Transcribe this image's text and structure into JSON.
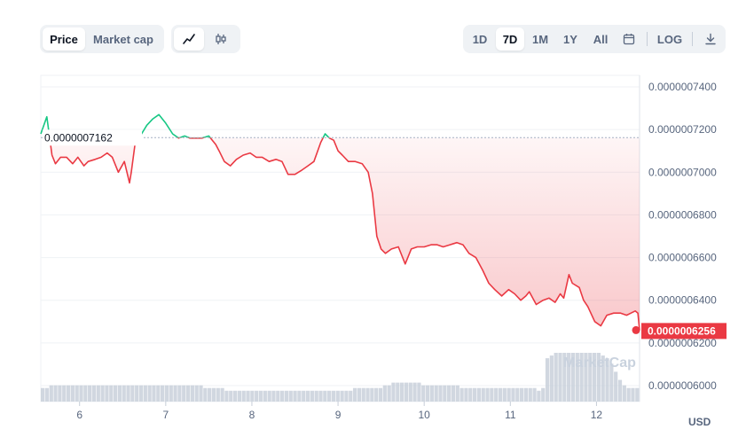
{
  "toolbar": {
    "metric_tabs": [
      {
        "label": "Price",
        "active": true
      },
      {
        "label": "Market cap",
        "active": false
      }
    ],
    "chart_style": [
      {
        "icon": "line-chart-icon",
        "active": true
      },
      {
        "icon": "candlestick-icon",
        "active": false
      }
    ],
    "ranges": [
      {
        "label": "1D",
        "active": false
      },
      {
        "label": "7D",
        "active": true
      },
      {
        "label": "1M",
        "active": false
      },
      {
        "label": "1Y",
        "active": false
      },
      {
        "label": "All",
        "active": false
      }
    ],
    "calendar_icon": "calendar-icon",
    "log_label": "LOG",
    "download_icon": "download-icon"
  },
  "colors": {
    "up": "#16c784",
    "down": "#ea3943",
    "grid": "#eff2f5",
    "volume": "#c2c9d6"
  },
  "currency_label": "USD",
  "watermark": "MarketCap",
  "chart_data": {
    "type": "line",
    "x_tick_labels": [
      "6",
      "7",
      "8",
      "9",
      "10",
      "11",
      "12"
    ],
    "x_range": [
      5.55,
      12.5
    ],
    "y_tick_labels": [
      "0.0000007400",
      "0.0000007200",
      "0.0000007000",
      "0.0000006800",
      "0.0000006600",
      "0.0000006400",
      "0.0000006200",
      "0.0000006000"
    ],
    "ylim": [
      5.95e-07,
      7.4e-07
    ],
    "grid": true,
    "reference_price": 7.162e-07,
    "reference_label": "0.0000007162",
    "current_price": 6.256e-07,
    "current_label": "0.0000006256",
    "series": [
      {
        "x": [
          5.55,
          5.62,
          5.68,
          5.72,
          5.78,
          5.85,
          5.92,
          5.98,
          6.05,
          6.1,
          6.18,
          6.25,
          6.32,
          6.38,
          6.45,
          6.52,
          6.58,
          6.6,
          6.65,
          6.72,
          6.78,
          6.85,
          6.92,
          7.0,
          7.08,
          7.15,
          7.22,
          7.28,
          7.35,
          7.42,
          7.5,
          7.58,
          7.62,
          7.68,
          7.75,
          7.82,
          7.9,
          7.98,
          8.05,
          8.12,
          8.2,
          8.28,
          8.35,
          8.42,
          8.5,
          8.58,
          8.65,
          8.72,
          8.8,
          8.85,
          8.9,
          8.95,
          9.0,
          9.05,
          9.12,
          9.2,
          9.28,
          9.35,
          9.4,
          9.45,
          9.5,
          9.55,
          9.62,
          9.7,
          9.78,
          9.85,
          9.92,
          10.0,
          10.08,
          10.15,
          10.22,
          10.3,
          10.38,
          10.45,
          10.52,
          10.6,
          10.68,
          10.75,
          10.82,
          10.9,
          10.98,
          11.05,
          11.12,
          11.18,
          11.22,
          11.3,
          11.38,
          11.45,
          11.52,
          11.58,
          11.62,
          11.68,
          11.72,
          11.8,
          11.85,
          11.9,
          11.98,
          12.05,
          12.12,
          12.2,
          12.28,
          12.35,
          12.4,
          12.45,
          12.48,
          12.5
        ],
        "y": [
          7.18e-07,
          7.26e-07,
          7.08e-07,
          7.04e-07,
          7.07e-07,
          7.07e-07,
          7.04e-07,
          7.07e-07,
          7.03e-07,
          7.05e-07,
          7.06e-07,
          7.07e-07,
          7.09e-07,
          7.07e-07,
          7e-07,
          7.05e-07,
          6.95e-07,
          7e-07,
          7.15e-07,
          7.18e-07,
          7.22e-07,
          7.25e-07,
          7.27e-07,
          7.23e-07,
          7.18e-07,
          7.16e-07,
          7.17e-07,
          7.16e-07,
          7.16e-07,
          7.16e-07,
          7.17e-07,
          7.13e-07,
          7.1e-07,
          7.05e-07,
          7.03e-07,
          7.06e-07,
          7.08e-07,
          7.09e-07,
          7.07e-07,
          7.07e-07,
          7.05e-07,
          7.06e-07,
          7.05e-07,
          6.99e-07,
          6.99e-07,
          7.01e-07,
          7.03e-07,
          7.05e-07,
          7.14e-07,
          7.18e-07,
          7.16e-07,
          7.15e-07,
          7.1e-07,
          7.08e-07,
          7.05e-07,
          7.05e-07,
          7.04e-07,
          7e-07,
          6.9e-07,
          6.7e-07,
          6.64e-07,
          6.62e-07,
          6.64e-07,
          6.65e-07,
          6.57e-07,
          6.64e-07,
          6.65e-07,
          6.65e-07,
          6.66e-07,
          6.66e-07,
          6.65e-07,
          6.66e-07,
          6.67e-07,
          6.66e-07,
          6.62e-07,
          6.6e-07,
          6.54e-07,
          6.48e-07,
          6.45e-07,
          6.42e-07,
          6.45e-07,
          6.43e-07,
          6.4e-07,
          6.42e-07,
          6.44e-07,
          6.38e-07,
          6.4e-07,
          6.41e-07,
          6.39e-07,
          6.43e-07,
          6.41e-07,
          6.52e-07,
          6.48e-07,
          6.46e-07,
          6.4e-07,
          6.37e-07,
          6.3e-07,
          6.28e-07,
          6.33e-07,
          6.34e-07,
          6.34e-07,
          6.33e-07,
          6.34e-07,
          6.35e-07,
          6.34e-07,
          6.26e-07
        ]
      }
    ],
    "volume": [
      5,
      5,
      6,
      6,
      6,
      6,
      6,
      6,
      6,
      6,
      6,
      6,
      6,
      6,
      6,
      6,
      6,
      6,
      6,
      6,
      6,
      6,
      6,
      6,
      6,
      6,
      6,
      6,
      6,
      6,
      6,
      6,
      6,
      6,
      6,
      6,
      6,
      6,
      5,
      5,
      5,
      5,
      5,
      4,
      4,
      4,
      4,
      4,
      4,
      4,
      4,
      4,
      4,
      4,
      4,
      4,
      4,
      4,
      4,
      4,
      4,
      4,
      4,
      4,
      4,
      4,
      4,
      4,
      4,
      4,
      4,
      4,
      4,
      5,
      5,
      5,
      5,
      5,
      5,
      5,
      6,
      6,
      7,
      7,
      7,
      7,
      7,
      7,
      7,
      6,
      6,
      6,
      6,
      6,
      6,
      6,
      6,
      6,
      5,
      5,
      5,
      5,
      5,
      5,
      5,
      5,
      5,
      5,
      5,
      5,
      5,
      5,
      5,
      5,
      5,
      5,
      4,
      5,
      16,
      17,
      18,
      18,
      18,
      18,
      18,
      18,
      18,
      18,
      18,
      18,
      18,
      17,
      16,
      14,
      11,
      8,
      6,
      5,
      5,
      5
    ]
  }
}
